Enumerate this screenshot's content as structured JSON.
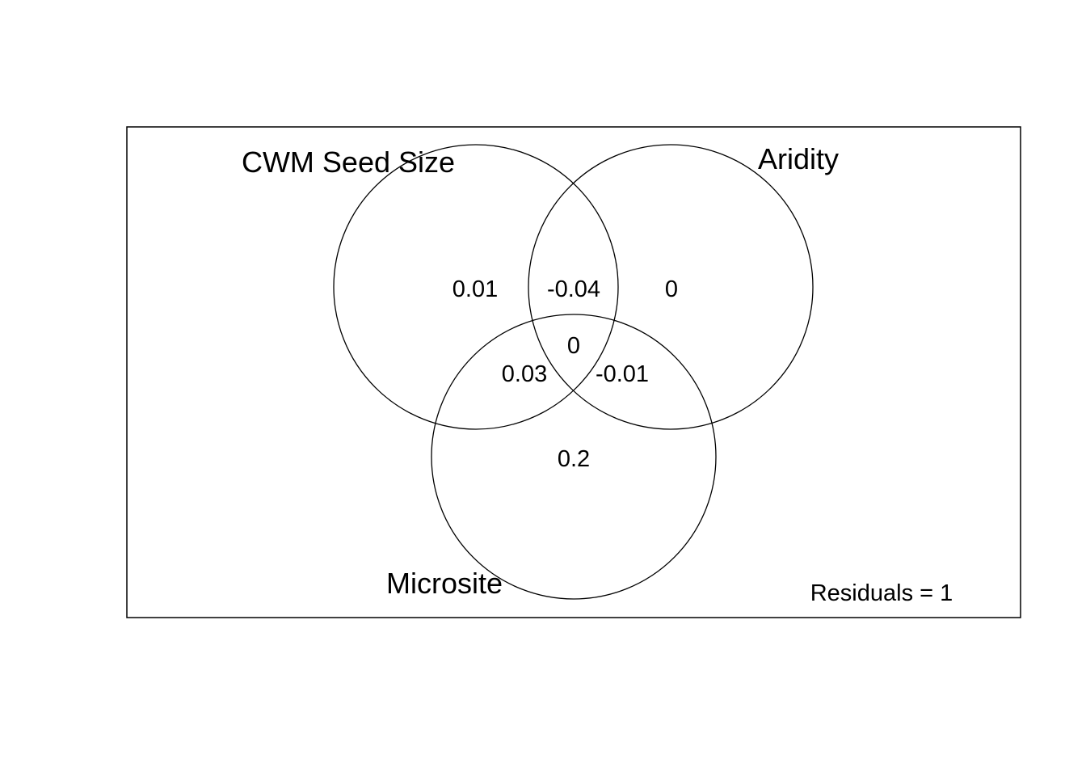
{
  "diagram": {
    "type": "venn-variance-partition",
    "sets": [
      {
        "id": "seed",
        "label": "CWM Seed Size"
      },
      {
        "id": "aridity",
        "label": "Aridity"
      },
      {
        "id": "microsite",
        "label": "Microsite"
      }
    ],
    "regions": [
      {
        "id": "seed-only",
        "sets": [
          "seed"
        ],
        "value": "0.01"
      },
      {
        "id": "seed-aridity",
        "sets": [
          "seed",
          "aridity"
        ],
        "value": "-0.04"
      },
      {
        "id": "aridity-only",
        "sets": [
          "aridity"
        ],
        "value": "0"
      },
      {
        "id": "all-three",
        "sets": [
          "seed",
          "aridity",
          "microsite"
        ],
        "value": "0"
      },
      {
        "id": "seed-microsite",
        "sets": [
          "seed",
          "microsite"
        ],
        "value": "0.03"
      },
      {
        "id": "aridity-microsite",
        "sets": [
          "aridity",
          "microsite"
        ],
        "value": "-0.01"
      },
      {
        "id": "microsite-only",
        "sets": [
          "microsite"
        ],
        "value": "0.2"
      }
    ],
    "residuals_text": "Residuals = 1"
  }
}
